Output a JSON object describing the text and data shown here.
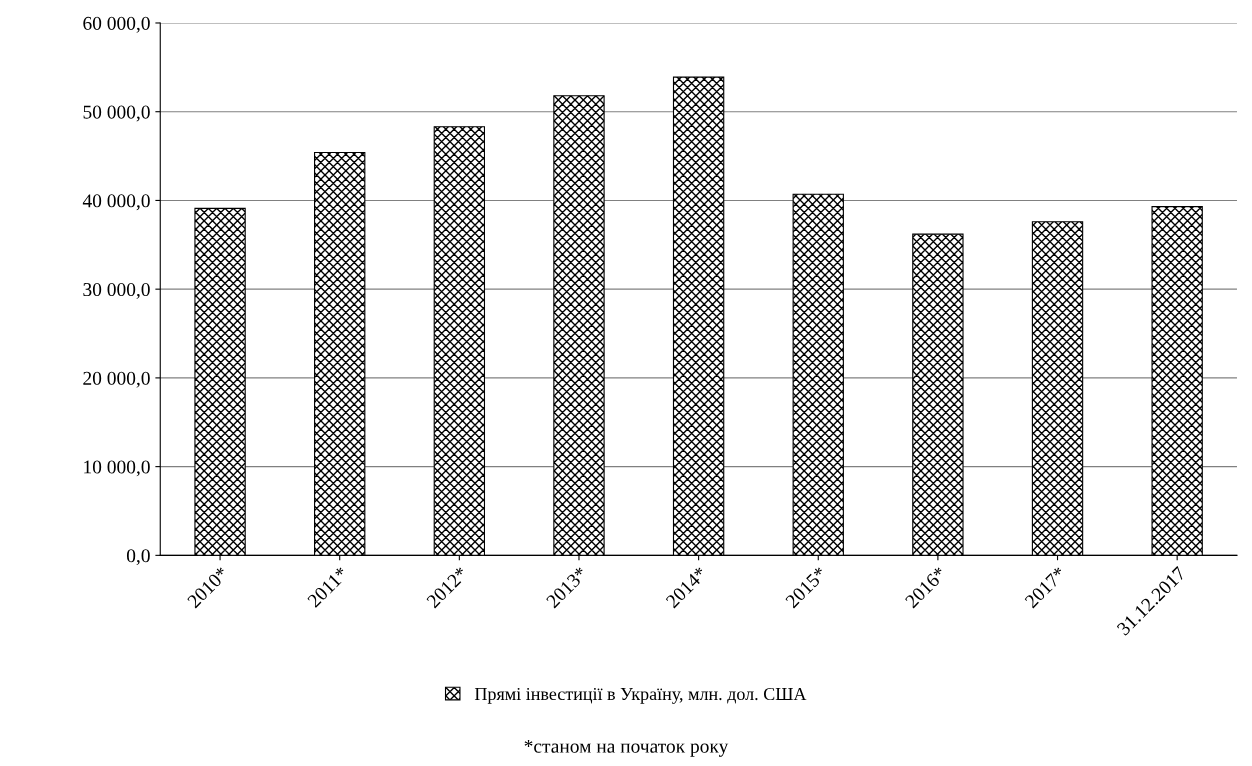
{
  "chart_data": {
    "type": "bar",
    "categories": [
      "2010*",
      "2011*",
      "2012*",
      "2013*",
      "2014*",
      "2015*",
      "2016*",
      "2017*",
      "31.12.2017"
    ],
    "series": [
      {
        "name": "Прямі інвестиції в Україну, млн. дол. США",
        "color": "#000000",
        "values": [
          39100,
          45400,
          48300,
          51800,
          53900,
          40700,
          36200,
          37600,
          39300
        ]
      }
    ],
    "ylim": [
      0,
      60000
    ],
    "yticks": [
      {
        "value": 0,
        "label": "0,0"
      },
      {
        "value": 10000,
        "label": "10 000,0"
      },
      {
        "value": 20000,
        "label": "20 000,0"
      },
      {
        "value": 30000,
        "label": "30 000,0"
      },
      {
        "value": 40000,
        "label": "40 000,0"
      },
      {
        "value": 50000,
        "label": "50 000,0"
      },
      {
        "value": 60000,
        "label": "60 000,0"
      }
    ],
    "grid": "y",
    "legend": "bottom",
    "annotations": [
      "*станом на початок року"
    ]
  }
}
